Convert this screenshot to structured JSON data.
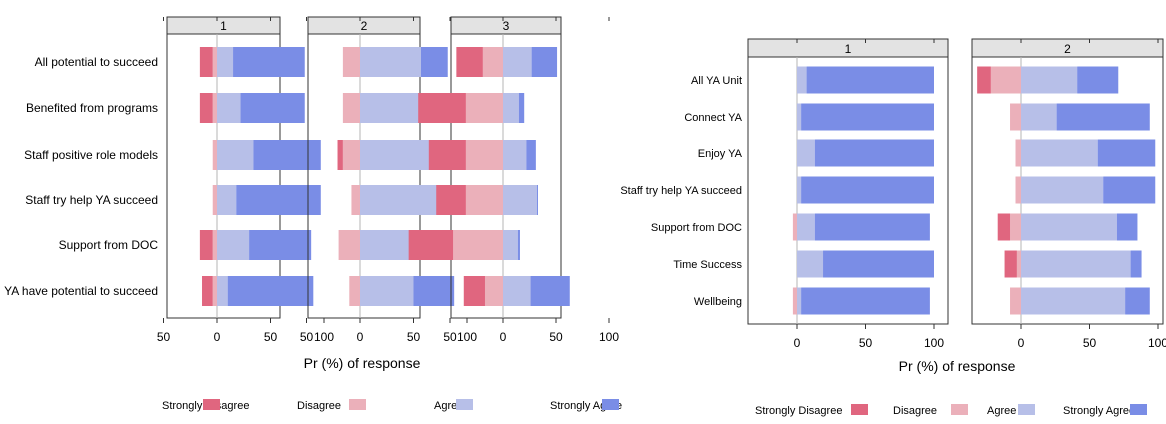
{
  "colors": {
    "strongly_disagree": "#e0667f",
    "disagree": "#ebb0ba",
    "agree": "#b7bfe8",
    "strongly_agree": "#7a8de6",
    "strip": "#e3e3e3",
    "zero_line": "#b5b5b5"
  },
  "chart_data": [
    {
      "type": "bar",
      "orientation": "horizontal",
      "stacked": "diverging",
      "xlabel": "Pr (%) of response",
      "xticks": [
        "50",
        "0",
        "50",
        "100"
      ],
      "xlim": [
        -75,
        105
      ],
      "legend_position": "bottom",
      "legend": [
        "Strongly Disagree",
        "Disagree",
        "Agree",
        "Strongly Agree"
      ],
      "categories": [
        "All potential to succeed",
        "Benefited from programs",
        "Staff positive role models",
        "Staff try help YA succeed",
        "Support from DOC",
        "YA have potential to succeed"
      ],
      "panels": [
        {
          "strip": "1",
          "values": [
            [
              12,
              4,
              15,
              67
            ],
            [
              12,
              4,
              22,
              60
            ],
            [
              0,
              4,
              34,
              63
            ],
            [
              0,
              4,
              18,
              79
            ],
            [
              12,
              4,
              30,
              58
            ],
            [
              10,
              4,
              10,
              80
            ]
          ]
        },
        {
          "strip": "2",
          "values": [
            [
              0,
              16,
              57,
              25
            ],
            [
              0,
              16,
              72,
              10
            ],
            [
              5,
              16,
              70,
              4
            ],
            [
              0,
              8,
              80,
              8
            ],
            [
              0,
              20,
              75,
              5
            ],
            [
              0,
              10,
              50,
              38
            ]
          ]
        },
        {
          "strip": "3",
          "values": [
            [
              25,
              19,
              27,
              24
            ],
            [
              45,
              35,
              15,
              5
            ],
            [
              35,
              35,
              22,
              9
            ],
            [
              28,
              35,
              32,
              1
            ],
            [
              42,
              47,
              14,
              2
            ],
            [
              20,
              17,
              26,
              37
            ]
          ]
        }
      ]
    },
    {
      "type": "bar",
      "orientation": "horizontal",
      "stacked": "diverging",
      "xlabel": "Pr (%) of response",
      "xticks": [
        "0",
        "50",
        "100"
      ],
      "xlim": [
        -35,
        105
      ],
      "legend_position": "bottom",
      "legend": [
        "Strongly Disagree",
        "Disagree",
        "Agree",
        "Strongly Agree"
      ],
      "categories": [
        "All YA Unit",
        "Connect YA",
        "Enjoy YA",
        "Staff try help YA succeed",
        "Support from DOC",
        "Time Success",
        "Wellbeing"
      ],
      "panels": [
        {
          "strip": "1",
          "values": [
            [
              0,
              0,
              7,
              93
            ],
            [
              0,
              0,
              3,
              97
            ],
            [
              0,
              0,
              13,
              87
            ],
            [
              0,
              0,
              3,
              97
            ],
            [
              0,
              3,
              13,
              84
            ],
            [
              0,
              0,
              19,
              81
            ],
            [
              0,
              3,
              3,
              94
            ]
          ]
        },
        {
          "strip": "2",
          "values": [
            [
              10,
              22,
              41,
              30
            ],
            [
              0,
              8,
              26,
              68
            ],
            [
              0,
              4,
              56,
              42
            ],
            [
              0,
              4,
              60,
              38
            ],
            [
              9,
              8,
              70,
              15
            ],
            [
              9,
              3,
              80,
              8
            ],
            [
              0,
              8,
              76,
              18
            ]
          ]
        }
      ]
    }
  ]
}
